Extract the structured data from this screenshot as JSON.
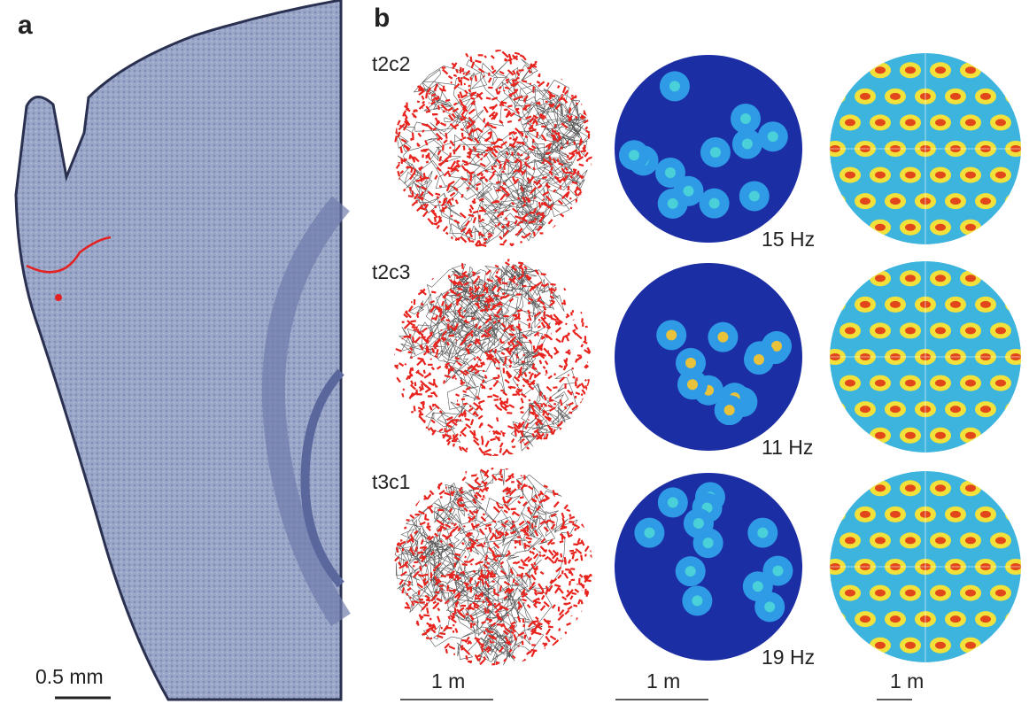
{
  "panels": [
    {
      "label": "a",
      "scale_bar": "0.5 mm"
    },
    {
      "label": "b",
      "cells": [
        {
          "name": "t2c2",
          "peak_rate": "15 Hz"
        },
        {
          "name": "t2c3",
          "peak_rate": "11 Hz"
        },
        {
          "name": "t3c1",
          "peak_rate": "19 Hz"
        }
      ],
      "scale_bars": [
        "1 m",
        "1 m",
        "1 m"
      ]
    }
  ]
}
